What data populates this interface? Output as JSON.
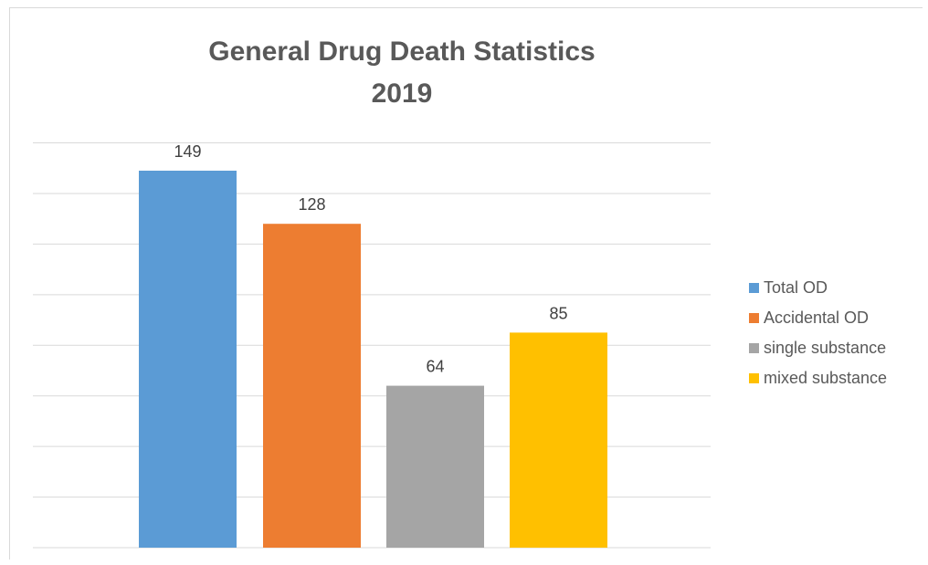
{
  "chart_data": {
    "type": "bar",
    "title": "General Drug Death Statistics",
    "subtitle": "2019",
    "categories": [
      "Total OD",
      "Accidental OD",
      "single substance",
      "mixed substance"
    ],
    "values": [
      149,
      128,
      64,
      85
    ],
    "colors": [
      "#5b9bd5",
      "#ed7d31",
      "#a5a5a5",
      "#ffc000"
    ],
    "ylim": [
      0,
      160
    ],
    "grid": true,
    "legend_position": "right",
    "data_labels": true
  }
}
